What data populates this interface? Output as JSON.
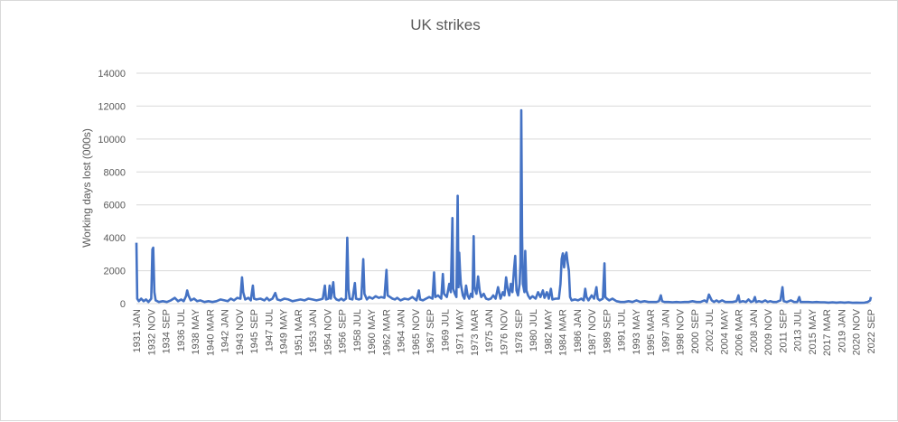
{
  "chart_data": {
    "type": "line",
    "title": "UK strikes",
    "xlabel": "",
    "ylabel": "Working days lost (000s)",
    "ylim": [
      0,
      14000
    ],
    "yticks": [
      0,
      2000,
      4000,
      6000,
      8000,
      10000,
      12000,
      14000
    ],
    "yticklabels": [
      "0",
      "2000",
      "4000",
      "6000",
      "8000",
      "10000",
      "12000",
      "14000"
    ],
    "grid": true,
    "legend": "none",
    "line_color": "#4472c4",
    "xticklabels": [
      "1931 JAN",
      "1932 NOV",
      "1934 SEP",
      "1936 JUL",
      "1938 MAY",
      "1940 MAR",
      "1942 JAN",
      "1943 NOV",
      "1945 SEP",
      "1947 JUL",
      "1949 MAY",
      "1951 MAR",
      "1953 JAN",
      "1954 NOV",
      "1956 SEP",
      "1958 JUL",
      "1960 MAY",
      "1962 MAR",
      "1964 JAN",
      "1965 NOV",
      "1967 SEP",
      "1969 JUL",
      "1971 MAY",
      "1973 MAR",
      "1975 JAN",
      "1976 NOV",
      "1978 SEP",
      "1980 JUL",
      "1982 MAY",
      "1984 MAR",
      "1986 JAN",
      "1987 NOV",
      "1989 SEP",
      "1991 JUL",
      "1993 MAY",
      "1995 MAR",
      "1997 JAN",
      "1998 NOV",
      "2000 SEP",
      "2002 JUL",
      "2004 MAY",
      "2006 MAR",
      "2008 JAN",
      "2009 NOV",
      "2011 SEP",
      "2013 JUL",
      "2015 MAY",
      "2017 MAR",
      "2019 JAN",
      "2020 NOV",
      "2022 SEP"
    ],
    "series": [
      {
        "values": [
          [
            1931.0,
            3700
          ],
          [
            1931.1,
            300
          ],
          [
            1931.3,
            150
          ],
          [
            1931.6,
            300
          ],
          [
            1931.9,
            150
          ],
          [
            1932.2,
            250
          ],
          [
            1932.5,
            100
          ],
          [
            1932.85,
            300
          ],
          [
            1933.0,
            3300
          ],
          [
            1933.1,
            3400
          ],
          [
            1933.25,
            700
          ],
          [
            1933.4,
            200
          ],
          [
            1933.8,
            100
          ],
          [
            1934.3,
            150
          ],
          [
            1934.8,
            100
          ],
          [
            1935.3,
            200
          ],
          [
            1935.8,
            350
          ],
          [
            1936.2,
            150
          ],
          [
            1936.6,
            250
          ],
          [
            1936.9,
            150
          ],
          [
            1937.2,
            450
          ],
          [
            1937.35,
            800
          ],
          [
            1937.5,
            500
          ],
          [
            1937.8,
            200
          ],
          [
            1938.2,
            300
          ],
          [
            1938.6,
            150
          ],
          [
            1939.0,
            200
          ],
          [
            1939.5,
            100
          ],
          [
            1940.0,
            150
          ],
          [
            1940.5,
            100
          ],
          [
            1941.0,
            150
          ],
          [
            1941.5,
            250
          ],
          [
            1942.0,
            200
          ],
          [
            1942.4,
            150
          ],
          [
            1942.8,
            300
          ],
          [
            1943.2,
            200
          ],
          [
            1943.6,
            350
          ],
          [
            1944.0,
            300
          ],
          [
            1944.2,
            1600
          ],
          [
            1944.35,
            700
          ],
          [
            1944.6,
            250
          ],
          [
            1945.0,
            350
          ],
          [
            1945.3,
            200
          ],
          [
            1945.55,
            1100
          ],
          [
            1945.7,
            300
          ],
          [
            1946.0,
            250
          ],
          [
            1946.5,
            300
          ],
          [
            1947.0,
            200
          ],
          [
            1947.3,
            350
          ],
          [
            1947.6,
            200
          ],
          [
            1948.0,
            300
          ],
          [
            1948.35,
            650
          ],
          [
            1948.6,
            250
          ],
          [
            1949.0,
            200
          ],
          [
            1949.5,
            300
          ],
          [
            1950.0,
            250
          ],
          [
            1950.5,
            150
          ],
          [
            1951.0,
            200
          ],
          [
            1951.5,
            250
          ],
          [
            1952.0,
            200
          ],
          [
            1952.5,
            300
          ],
          [
            1953.0,
            250
          ],
          [
            1953.5,
            200
          ],
          [
            1954.0,
            250
          ],
          [
            1954.3,
            300
          ],
          [
            1954.55,
            1100
          ],
          [
            1954.7,
            250
          ],
          [
            1955.0,
            300
          ],
          [
            1955.15,
            1100
          ],
          [
            1955.3,
            300
          ],
          [
            1955.6,
            1300
          ],
          [
            1955.75,
            400
          ],
          [
            1956.0,
            250
          ],
          [
            1956.3,
            200
          ],
          [
            1956.6,
            300
          ],
          [
            1956.9,
            200
          ],
          [
            1957.2,
            300
          ],
          [
            1957.35,
            4000
          ],
          [
            1957.5,
            900
          ],
          [
            1957.65,
            300
          ],
          [
            1958.0,
            250
          ],
          [
            1958.3,
            1250
          ],
          [
            1958.45,
            300
          ],
          [
            1958.8,
            250
          ],
          [
            1959.1,
            300
          ],
          [
            1959.35,
            2700
          ],
          [
            1959.5,
            600
          ],
          [
            1959.8,
            250
          ],
          [
            1960.1,
            400
          ],
          [
            1960.5,
            300
          ],
          [
            1960.9,
            450
          ],
          [
            1961.3,
            350
          ],
          [
            1961.6,
            400
          ],
          [
            1962.0,
            350
          ],
          [
            1962.25,
            2050
          ],
          [
            1962.4,
            500
          ],
          [
            1962.7,
            400
          ],
          [
            1963.0,
            300
          ],
          [
            1963.3,
            250
          ],
          [
            1963.6,
            350
          ],
          [
            1964.0,
            200
          ],
          [
            1964.5,
            300
          ],
          [
            1965.0,
            250
          ],
          [
            1965.5,
            400
          ],
          [
            1966.0,
            200
          ],
          [
            1966.3,
            800
          ],
          [
            1966.45,
            250
          ],
          [
            1966.8,
            200
          ],
          [
            1967.2,
            300
          ],
          [
            1967.6,
            400
          ],
          [
            1968.0,
            300
          ],
          [
            1968.2,
            1900
          ],
          [
            1968.35,
            400
          ],
          [
            1968.7,
            500
          ],
          [
            1969.1,
            300
          ],
          [
            1969.3,
            1800
          ],
          [
            1969.45,
            600
          ],
          [
            1969.8,
            400
          ],
          [
            1970.1,
            1200
          ],
          [
            1970.3,
            700
          ],
          [
            1970.5,
            5200
          ],
          [
            1970.6,
            900
          ],
          [
            1970.8,
            600
          ],
          [
            1971.0,
            400
          ],
          [
            1971.15,
            6550
          ],
          [
            1971.25,
            1000
          ],
          [
            1971.35,
            3100
          ],
          [
            1971.45,
            2000
          ],
          [
            1971.55,
            1200
          ],
          [
            1971.8,
            500
          ],
          [
            1972.0,
            300
          ],
          [
            1972.2,
            1100
          ],
          [
            1972.4,
            500
          ],
          [
            1972.6,
            300
          ],
          [
            1972.8,
            600
          ],
          [
            1973.0,
            400
          ],
          [
            1973.15,
            4100
          ],
          [
            1973.25,
            1000
          ],
          [
            1973.5,
            600
          ],
          [
            1973.7,
            1650
          ],
          [
            1973.9,
            800
          ],
          [
            1974.1,
            400
          ],
          [
            1974.4,
            600
          ],
          [
            1974.7,
            300
          ],
          [
            1975.0,
            250
          ],
          [
            1975.3,
            300
          ],
          [
            1975.6,
            500
          ],
          [
            1975.9,
            300
          ],
          [
            1976.2,
            1000
          ],
          [
            1976.5,
            300
          ],
          [
            1976.8,
            700
          ],
          [
            1977.0,
            500
          ],
          [
            1977.2,
            1600
          ],
          [
            1977.4,
            900
          ],
          [
            1977.6,
            500
          ],
          [
            1977.8,
            1200
          ],
          [
            1978.0,
            700
          ],
          [
            1978.2,
            2100
          ],
          [
            1978.35,
            2900
          ],
          [
            1978.5,
            800
          ],
          [
            1978.7,
            500
          ],
          [
            1978.9,
            1200
          ],
          [
            1979.0,
            2500
          ],
          [
            1979.1,
            11750
          ],
          [
            1979.2,
            4000
          ],
          [
            1979.3,
            1200
          ],
          [
            1979.5,
            700
          ],
          [
            1979.6,
            3200
          ],
          [
            1979.75,
            800
          ],
          [
            1979.95,
            500
          ],
          [
            1980.2,
            300
          ],
          [
            1980.5,
            450
          ],
          [
            1980.9,
            300
          ],
          [
            1981.2,
            700
          ],
          [
            1981.5,
            400
          ],
          [
            1981.8,
            800
          ],
          [
            1982.0,
            350
          ],
          [
            1982.3,
            700
          ],
          [
            1982.55,
            300
          ],
          [
            1982.8,
            900
          ],
          [
            1983.0,
            250
          ],
          [
            1983.4,
            300
          ],
          [
            1983.8,
            300
          ],
          [
            1984.0,
            1200
          ],
          [
            1984.15,
            2700
          ],
          [
            1984.3,
            3050
          ],
          [
            1984.45,
            2200
          ],
          [
            1984.6,
            2900
          ],
          [
            1984.75,
            3100
          ],
          [
            1984.9,
            2500
          ],
          [
            1985.05,
            2000
          ],
          [
            1985.2,
            400
          ],
          [
            1985.4,
            200
          ],
          [
            1985.8,
            250
          ],
          [
            1986.2,
            200
          ],
          [
            1986.6,
            300
          ],
          [
            1986.9,
            200
          ],
          [
            1987.1,
            900
          ],
          [
            1987.25,
            400
          ],
          [
            1987.5,
            200
          ],
          [
            1987.9,
            500
          ],
          [
            1988.2,
            300
          ],
          [
            1988.5,
            1000
          ],
          [
            1988.65,
            300
          ],
          [
            1988.9,
            200
          ],
          [
            1989.3,
            300
          ],
          [
            1989.5,
            2450
          ],
          [
            1989.6,
            400
          ],
          [
            1989.8,
            300
          ],
          [
            1990.1,
            200
          ],
          [
            1990.5,
            300
          ],
          [
            1991.0,
            150
          ],
          [
            1991.5,
            100
          ],
          [
            1992.0,
            100
          ],
          [
            1992.5,
            150
          ],
          [
            1993.0,
            100
          ],
          [
            1993.5,
            200
          ],
          [
            1994.0,
            100
          ],
          [
            1994.5,
            150
          ],
          [
            1995.0,
            100
          ],
          [
            1995.5,
            100
          ],
          [
            1996.0,
            100
          ],
          [
            1996.3,
            150
          ],
          [
            1996.55,
            500
          ],
          [
            1996.7,
            150
          ],
          [
            1997.0,
            100
          ],
          [
            1997.5,
            100
          ],
          [
            1998.0,
            80
          ],
          [
            1998.5,
            100
          ],
          [
            1999.0,
            80
          ],
          [
            1999.5,
            100
          ],
          [
            2000.0,
            100
          ],
          [
            2000.5,
            150
          ],
          [
            2001.0,
            100
          ],
          [
            2001.5,
            100
          ],
          [
            2002.0,
            200
          ],
          [
            2002.3,
            100
          ],
          [
            2002.55,
            550
          ],
          [
            2002.7,
            400
          ],
          [
            2002.9,
            200
          ],
          [
            2003.2,
            100
          ],
          [
            2003.5,
            200
          ],
          [
            2003.8,
            100
          ],
          [
            2004.2,
            200
          ],
          [
            2004.6,
            100
          ],
          [
            2005.0,
            100
          ],
          [
            2005.5,
            100
          ],
          [
            2006.0,
            150
          ],
          [
            2006.25,
            500
          ],
          [
            2006.4,
            100
          ],
          [
            2006.8,
            150
          ],
          [
            2007.2,
            100
          ],
          [
            2007.5,
            250
          ],
          [
            2007.8,
            100
          ],
          [
            2008.1,
            150
          ],
          [
            2008.3,
            400
          ],
          [
            2008.45,
            100
          ],
          [
            2008.8,
            150
          ],
          [
            2009.2,
            100
          ],
          [
            2009.6,
            200
          ],
          [
            2009.9,
            100
          ],
          [
            2010.2,
            150
          ],
          [
            2010.6,
            100
          ],
          [
            2011.0,
            100
          ],
          [
            2011.5,
            200
          ],
          [
            2011.75,
            1000
          ],
          [
            2011.9,
            150
          ],
          [
            2012.3,
            100
          ],
          [
            2012.8,
            200
          ],
          [
            2013.2,
            100
          ],
          [
            2013.6,
            100
          ],
          [
            2013.85,
            400
          ],
          [
            2014.0,
            100
          ],
          [
            2014.5,
            100
          ],
          [
            2015.0,
            100
          ],
          [
            2015.5,
            80
          ],
          [
            2016.0,
            100
          ],
          [
            2016.5,
            80
          ],
          [
            2017.0,
            80
          ],
          [
            2017.5,
            60
          ],
          [
            2018.0,
            80
          ],
          [
            2018.5,
            60
          ],
          [
            2019.0,
            80
          ],
          [
            2019.5,
            60
          ],
          [
            2020.0,
            80
          ],
          [
            2020.5,
            50
          ],
          [
            2021.0,
            60
          ],
          [
            2021.5,
            50
          ],
          [
            2022.0,
            60
          ],
          [
            2022.4,
            100
          ],
          [
            2022.7,
            200
          ],
          [
            2022.8,
            400
          ]
        ]
      }
    ]
  }
}
